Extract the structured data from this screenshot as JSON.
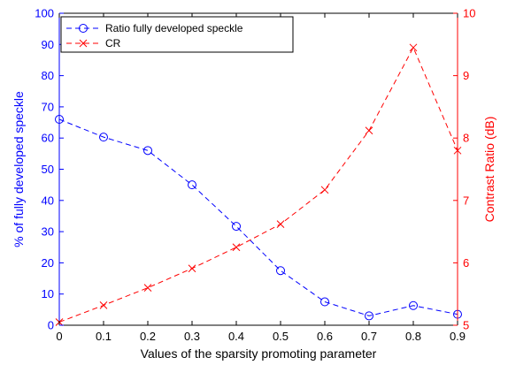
{
  "chart_data": {
    "type": "line",
    "xlabel": "Values of the sparsity promoting parameter",
    "x": [
      0,
      0.1,
      0.2,
      0.3,
      0.4,
      0.5,
      0.6,
      0.7,
      0.8,
      0.9
    ],
    "xlim": [
      0,
      0.9
    ],
    "xticks": [
      "0",
      "0.1",
      "0.2",
      "0.3",
      "0.4",
      "0.5",
      "0.6",
      "0.7",
      "0.8",
      "0.9"
    ],
    "left_axis": {
      "label": "% of fully developed speckle",
      "ylim": [
        0,
        100
      ],
      "ticks": [
        "0",
        "10",
        "20",
        "30",
        "40",
        "50",
        "60",
        "70",
        "80",
        "90",
        "100"
      ],
      "color": "#0000ff"
    },
    "right_axis": {
      "label": "Contrast Ratio (dB)",
      "ylim": [
        5,
        10
      ],
      "ticks": [
        "5",
        "6",
        "7",
        "8",
        "9",
        "10"
      ],
      "color": "#ff0000"
    },
    "series": [
      {
        "name": "Ratio fully developed speckle",
        "axis": "left",
        "color": "#0000ff",
        "marker": "circle",
        "line": "dashed",
        "values": [
          66,
          60.3,
          56,
          45,
          31.7,
          17.5,
          7.5,
          3,
          6.3,
          3.5
        ]
      },
      {
        "name": "CR",
        "axis": "right",
        "color": "#ff0000",
        "marker": "x",
        "line": "dashed",
        "values": [
          5.05,
          5.32,
          5.6,
          5.91,
          6.25,
          6.62,
          7.17,
          8.12,
          9.45,
          7.8
        ]
      }
    ],
    "legend_position": "top-left",
    "grid": false
  }
}
